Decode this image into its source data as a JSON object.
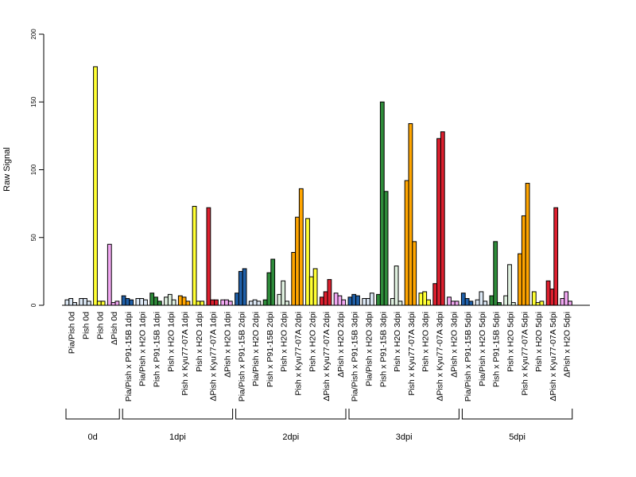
{
  "chart_data": {
    "type": "bar",
    "title": "",
    "ylabel": "Raw Signal",
    "xlabel": "",
    "ylim": [
      0,
      200
    ],
    "yticks": [
      0,
      50,
      100,
      150,
      200
    ],
    "grid": false,
    "legend": "none",
    "colors": {
      "Pia/Pish": "#dce8f5",
      "Pia/Pish x P91-15B": "#1f5fa8",
      "Pia/Pish x H2O": "#dce8f5",
      "Pish x P91-15B": "#2e8b3a",
      "Pish x H2O": "#dff0df",
      "Pish": "#ffff33",
      "Pish x Kyu77-07A": "#ffa500",
      "ΔPish x Kyu77-07A": "#dd1f2e",
      "ΔPish": "#f2a8f2",
      "ΔPish x H2O": "#f2a8f2"
    },
    "categories": [
      "Pia/Pish 0d",
      "Pish 0d",
      "Pish 0d",
      "ΔPish 0d",
      "Pia/Pish x P91-15B 1dpi",
      "Pia/Pish x H2O 1dpi",
      "Pish x P91-15B 1dpi",
      "Pish x H2O 1dpi",
      "Pish x Kyu77-07A 1dpi",
      "Pish x H2O 1dpi",
      "ΔPish x Kyu77-07A 1dpi",
      "ΔPish x H2O 1dpi",
      "Pia/Pish x P91-15B 2dpi",
      "Pia/Pish x H2O 2dpi",
      "Pish x P91-15B 2dpi",
      "Pish x H2O 2dpi",
      "Pish x Kyu77-07A 2dpi",
      "Pish x H2O 2dpi",
      "ΔPish x Kyu77-07A 2dpi",
      "ΔPish x H2O 2dpi",
      "Pia/Pish x P91-15B 3dpi",
      "Pia/Pish x H2O 3dpi",
      "Pish x P91-15B 3dpi",
      "Pish x H2O 3dpi",
      "Pish x Kyu77-07A 3dpi",
      "Pish x H2O 3dpi",
      "ΔPish x Kyu77-07A 3dpi",
      "ΔPish x H2O 3dpi",
      "Pia/Pish x P91-15B 5dpi",
      "Pia/Pish x H2O 5dpi",
      "Pish x P91-15B 5dpi",
      "Pish x H2O 5dpi",
      "Pish x Kyu77-07A 5dpi",
      "Pish x H2O 5dpi",
      "ΔPish x Kyu77-07A 5dpi",
      "ΔPish x H2O 5dpi"
    ],
    "groups": [
      {
        "category": "Pia/Pish 0d",
        "color": "Pia/Pish",
        "values": [
          4,
          5,
          2
        ]
      },
      {
        "category": "Pish 0d",
        "color": "Pia/Pish x H2O",
        "values": [
          5,
          5,
          3
        ]
      },
      {
        "category": "Pish 0d",
        "color": "Pish",
        "values": [
          176,
          3,
          3
        ]
      },
      {
        "category": "ΔPish 0d",
        "color": "ΔPish",
        "values": [
          45,
          2,
          3
        ]
      },
      {
        "category": "Pia/Pish x P91-15B 1dpi",
        "color": "Pia/Pish x P91-15B",
        "values": [
          7,
          5,
          4
        ]
      },
      {
        "category": "Pia/Pish x H2O 1dpi",
        "color": "Pia/Pish x H2O",
        "values": [
          5,
          5,
          4
        ]
      },
      {
        "category": "Pish x P91-15B 1dpi",
        "color": "Pish x P91-15B",
        "values": [
          9,
          6,
          3
        ]
      },
      {
        "category": "Pish x H2O 1dpi",
        "color": "Pish x H2O",
        "values": [
          6,
          8,
          4
        ]
      },
      {
        "category": "Pish x Kyu77-07A 1dpi",
        "color": "Pish x Kyu77-07A",
        "values": [
          7,
          6,
          3
        ]
      },
      {
        "category": "Pish x H2O 1dpi",
        "color": "Pish",
        "values": [
          73,
          3,
          3
        ]
      },
      {
        "category": "ΔPish x Kyu77-07A 1dpi",
        "color": "ΔPish x Kyu77-07A",
        "values": [
          72,
          4,
          4
        ]
      },
      {
        "category": "ΔPish x H2O 1dpi",
        "color": "ΔPish x H2O",
        "values": [
          4,
          4,
          3
        ]
      },
      {
        "category": "Pia/Pish x P91-15B 2dpi",
        "color": "Pia/Pish x P91-15B",
        "values": [
          9,
          25,
          27
        ]
      },
      {
        "category": "Pia/Pish x H2O 2dpi",
        "color": "Pia/Pish x H2O",
        "values": [
          3,
          4,
          3
        ]
      },
      {
        "category": "Pish x P91-15B 2dpi",
        "color": "Pish x P91-15B",
        "values": [
          4,
          24,
          34
        ]
      },
      {
        "category": "Pish x H2O 2dpi",
        "color": "Pish x H2O",
        "values": [
          8,
          18,
          3
        ]
      },
      {
        "category": "Pish x Kyu77-07A 2dpi",
        "color": "Pish x Kyu77-07A",
        "values": [
          39,
          65,
          86
        ]
      },
      {
        "category": "Pish x H2O 2dpi",
        "color": "Pish",
        "values": [
          64,
          21,
          27
        ]
      },
      {
        "category": "ΔPish x Kyu77-07A 2dpi",
        "color": "ΔPish x Kyu77-07A",
        "values": [
          6,
          10,
          19
        ]
      },
      {
        "category": "ΔPish x H2O 2dpi",
        "color": "ΔPish x H2O",
        "values": [
          9,
          7,
          4
        ]
      },
      {
        "category": "Pia/Pish x P91-15B 3dpi",
        "color": "Pia/Pish x P91-15B",
        "values": [
          6,
          8,
          7
        ]
      },
      {
        "category": "Pia/Pish x H2O 3dpi",
        "color": "Pia/Pish x H2O",
        "values": [
          5,
          5,
          9
        ]
      },
      {
        "category": "Pish x P91-15B 3dpi",
        "color": "Pish x P91-15B",
        "values": [
          8,
          150,
          84
        ]
      },
      {
        "category": "Pish x H2O 3dpi",
        "color": "Pish x H2O",
        "values": [
          5,
          29,
          3
        ]
      },
      {
        "category": "Pish x Kyu77-07A 3dpi",
        "color": "Pish x Kyu77-07A",
        "values": [
          92,
          134,
          47
        ]
      },
      {
        "category": "Pish x H2O 3dpi",
        "color": "Pish",
        "values": [
          9,
          10,
          4
        ]
      },
      {
        "category": "ΔPish x Kyu77-07A 3dpi",
        "color": "ΔPish x Kyu77-07A",
        "values": [
          16,
          123,
          128
        ]
      },
      {
        "category": "ΔPish x H2O 3dpi",
        "color": "ΔPish x H2O",
        "values": [
          6,
          3,
          3
        ]
      },
      {
        "category": "Pia/Pish x P91-15B 5dpi",
        "color": "Pia/Pish x P91-15B",
        "values": [
          9,
          5,
          3
        ]
      },
      {
        "category": "Pia/Pish x H2O 5dpi",
        "color": "Pia/Pish x H2O",
        "values": [
          4,
          10,
          3
        ]
      },
      {
        "category": "Pish x P91-15B 5dpi",
        "color": "Pish x P91-15B",
        "values": [
          7,
          47,
          2
        ]
      },
      {
        "category": "Pish x H2O 5dpi",
        "color": "Pish x H2O",
        "values": [
          7,
          30,
          2
        ]
      },
      {
        "category": "Pish x Kyu77-07A 5dpi",
        "color": "Pish x Kyu77-07A",
        "values": [
          38,
          66,
          90
        ]
      },
      {
        "category": "Pish x H2O 5dpi",
        "color": "Pish",
        "values": [
          10,
          2,
          3
        ]
      },
      {
        "category": "ΔPish x Kyu77-07A 5dpi",
        "color": "ΔPish x Kyu77-07A",
        "values": [
          18,
          12,
          72
        ]
      },
      {
        "category": "ΔPish x H2O 5dpi",
        "color": "ΔPish x H2O",
        "values": [
          5,
          10,
          3
        ]
      }
    ],
    "timepoints": [
      {
        "label": "0d",
        "start": 0,
        "end": 3
      },
      {
        "label": "1dpi",
        "start": 4,
        "end": 11
      },
      {
        "label": "2dpi",
        "start": 12,
        "end": 19
      },
      {
        "label": "3dpi",
        "start": 20,
        "end": 27
      },
      {
        "label": "5dpi",
        "start": 28,
        "end": 35
      }
    ]
  }
}
